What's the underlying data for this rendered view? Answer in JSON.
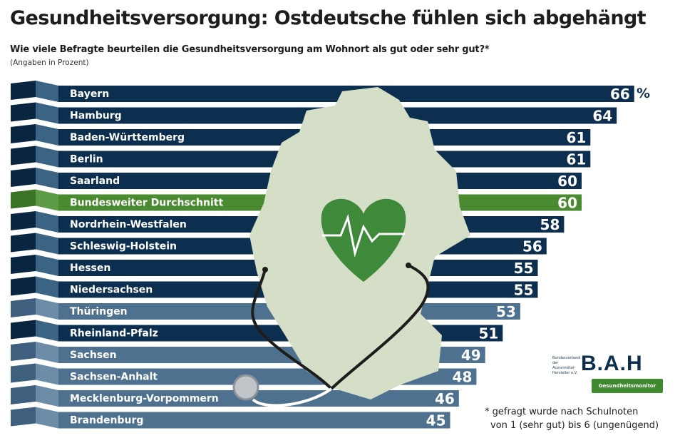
{
  "title": "Gesundheitsversorgung: Ostdeutsche fühlen sich abgehängt",
  "subtitle": "Wie viele Befragte beurteilen die Gesundheitsversorgung am Wohnort als gut oder sehr gut?*",
  "unit_note": "(Angaben in Prozent)",
  "unit_symbol": "%",
  "footnote": [
    "* gefragt wurde nach Schulnoten",
    "von 1 (sehr gut) bis 6 (ungenügend)"
  ],
  "logo": {
    "small_text": "Bundesverband der Arzneimittel-Hersteller e.V.",
    "name": "B.A.H",
    "badge": "Gesundheitsmonitor"
  },
  "colors": {
    "west": "#0d2f4f",
    "east": "#4e7190",
    "average": "#4a8a30",
    "map": "#d5dfc8",
    "heart": "#3f8a3a"
  },
  "chart_data": {
    "type": "bar",
    "orientation": "horizontal",
    "unit": "%",
    "categories": [
      "Bayern",
      "Hamburg",
      "Baden-Württemberg",
      "Berlin",
      "Saarland",
      "Bundesweiter Durchschnitt",
      "Nordrhein-Westfalen",
      "Schleswig-Holstein",
      "Hessen",
      "Niedersachsen",
      "Thüringen",
      "Rheinland-Pfalz",
      "Sachsen",
      "Sachsen-Anhalt",
      "Mecklenburg-Vorpommern",
      "Brandenburg"
    ],
    "values": [
      66,
      64,
      61,
      61,
      60,
      60,
      58,
      56,
      55,
      55,
      53,
      51,
      49,
      48,
      46,
      45
    ],
    "groups": [
      "west",
      "west",
      "west",
      "west",
      "west",
      "average",
      "west",
      "west",
      "west",
      "west",
      "east",
      "west",
      "east",
      "east",
      "east",
      "east"
    ]
  }
}
